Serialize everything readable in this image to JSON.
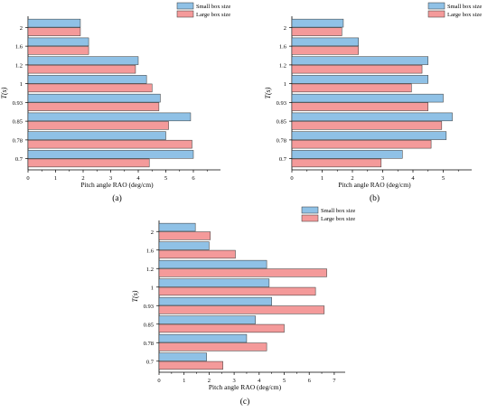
{
  "colors": {
    "small": "#8fc1e6",
    "large": "#f49a9a",
    "edge": "#333333"
  },
  "chart_data": [
    {
      "type": "bar",
      "orientation": "horizontal",
      "panel_label": "(a)",
      "categories": [
        "0.7",
        "0.78",
        "0.85",
        "0.93",
        "1",
        "1.2",
        "1.6",
        "2"
      ],
      "xlabel": "Pitch angle RAO (deg/cm)",
      "ylabel": "T(s)",
      "xlim": [
        0,
        7
      ],
      "xticks": [
        "0",
        "1",
        "2",
        "3",
        "4",
        "5",
        "6"
      ],
      "legend": "top-right",
      "series": [
        {
          "name": "Small box size",
          "values": [
            6.0,
            5.0,
            5.9,
            4.8,
            4.3,
            4.0,
            2.2,
            1.9
          ]
        },
        {
          "name": "Large box size",
          "values": [
            4.4,
            5.95,
            5.1,
            4.75,
            4.5,
            3.9,
            2.2,
            1.9
          ]
        }
      ]
    },
    {
      "type": "bar",
      "orientation": "horizontal",
      "panel_label": "(b)",
      "categories": [
        "0.7",
        "0.78",
        "0.85",
        "0.93",
        "1",
        "1.2",
        "1.6",
        "2"
      ],
      "xlabel": "Pitch angle RAO (deg/cm)",
      "ylabel": "T(s)",
      "xlim": [
        0,
        6
      ],
      "xticks": [
        "0",
        "1",
        "2",
        "3",
        "4",
        "5"
      ],
      "legend": "top-right",
      "series": [
        {
          "name": "Small box size",
          "values": [
            3.65,
            5.1,
            5.3,
            5.0,
            4.5,
            4.5,
            2.2,
            1.7
          ]
        },
        {
          "name": "Large box size",
          "values": [
            2.95,
            4.6,
            4.95,
            4.5,
            3.95,
            4.3,
            2.2,
            1.65
          ]
        }
      ]
    },
    {
      "type": "bar",
      "orientation": "horizontal",
      "panel_label": "(c)",
      "categories": [
        "0.7",
        "0.78",
        "0.85",
        "0.93",
        "1",
        "1.2",
        "1.6",
        "2"
      ],
      "xlabel": "Pitch angle RAO (deg/cm)",
      "ylabel": "T(s)",
      "xlim": [
        0,
        7.5
      ],
      "xticks": [
        "0",
        "1",
        "2",
        "3",
        "4",
        "5",
        "6",
        "7"
      ],
      "legend": "top-right",
      "series": [
        {
          "name": "Small box size",
          "values": [
            1.9,
            3.5,
            3.85,
            4.5,
            4.4,
            4.3,
            2.0,
            1.45
          ]
        },
        {
          "name": "Large box size",
          "values": [
            2.55,
            4.3,
            5.0,
            6.6,
            6.25,
            6.7,
            3.05,
            2.05
          ]
        }
      ]
    }
  ]
}
